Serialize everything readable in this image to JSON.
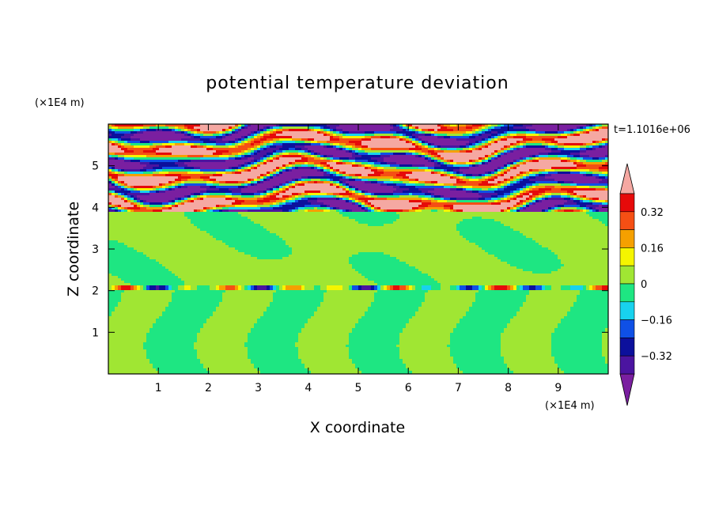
{
  "chart_data": {
    "type": "heatmap",
    "title": "potential temperature deviation",
    "xlabel": "X coordinate",
    "ylabel": "Z coordinate",
    "x_unit": "(×1E4 m)",
    "z_unit": "(×1E4 m)",
    "time_label": "t=1.1016e+06",
    "xlim": [
      0,
      10
    ],
    "ylim": [
      0,
      6
    ],
    "xticks": [
      "1",
      "2",
      "3",
      "4",
      "5",
      "6",
      "7",
      "8",
      "9"
    ],
    "yticks": [
      "1",
      "2",
      "3",
      "4",
      "5"
    ],
    "colorbar": {
      "levels": [
        -0.4,
        -0.32,
        -0.24,
        -0.16,
        -0.08,
        0,
        0.08,
        0.16,
        0.24,
        0.32,
        0.4
      ],
      "tick_labels": [
        "0.32",
        "0.16",
        "0",
        "−0.16",
        "−0.32"
      ],
      "colors": [
        "#7a1fa0",
        "#4b14a0",
        "#0c109c",
        "#0f50e6",
        "#18d2ee",
        "#1ee682",
        "#a0e633",
        "#f5f500",
        "#f5a000",
        "#f54f14",
        "#e60a0a",
        "#f5a8a2"
      ]
    },
    "regions": [
      {
        "z_range": [
          0,
          2.0
        ],
        "description": "plumes",
        "values": [
          0.04,
          -0.04
        ]
      },
      {
        "z_range": [
          2.0,
          2.1
        ],
        "description": "thin band",
        "values": [
          -0.35,
          0.3
        ]
      },
      {
        "z_range": [
          2.1,
          3.9
        ],
        "description": "near neutral",
        "values": [
          -0.04,
          0.04
        ]
      },
      {
        "z_range": [
          3.9,
          6.0
        ],
        "description": "strong layered oscillation",
        "values": [
          -0.45,
          0.45
        ]
      }
    ]
  }
}
